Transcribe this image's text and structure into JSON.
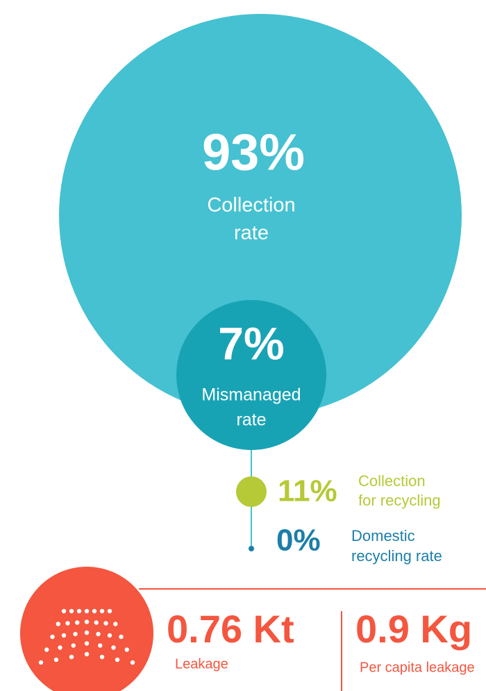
{
  "collection": {
    "value": "93%",
    "label_lines": [
      "Collection",
      "rate"
    ]
  },
  "mismanaged": {
    "value": "7%",
    "label_lines": [
      "Mismanaged",
      "rate"
    ]
  },
  "recycling_collection": {
    "value": "11%",
    "label_lines": [
      "Collection",
      "for recycling"
    ]
  },
  "domestic_recycling": {
    "value": "0%",
    "label_lines": [
      "Domestic",
      "recycling rate"
    ]
  },
  "leakage": {
    "value": "0.76 Kt",
    "label": "Leakage"
  },
  "per_capita": {
    "value": "0.9 Kg",
    "label": "Per capita leakage"
  }
}
